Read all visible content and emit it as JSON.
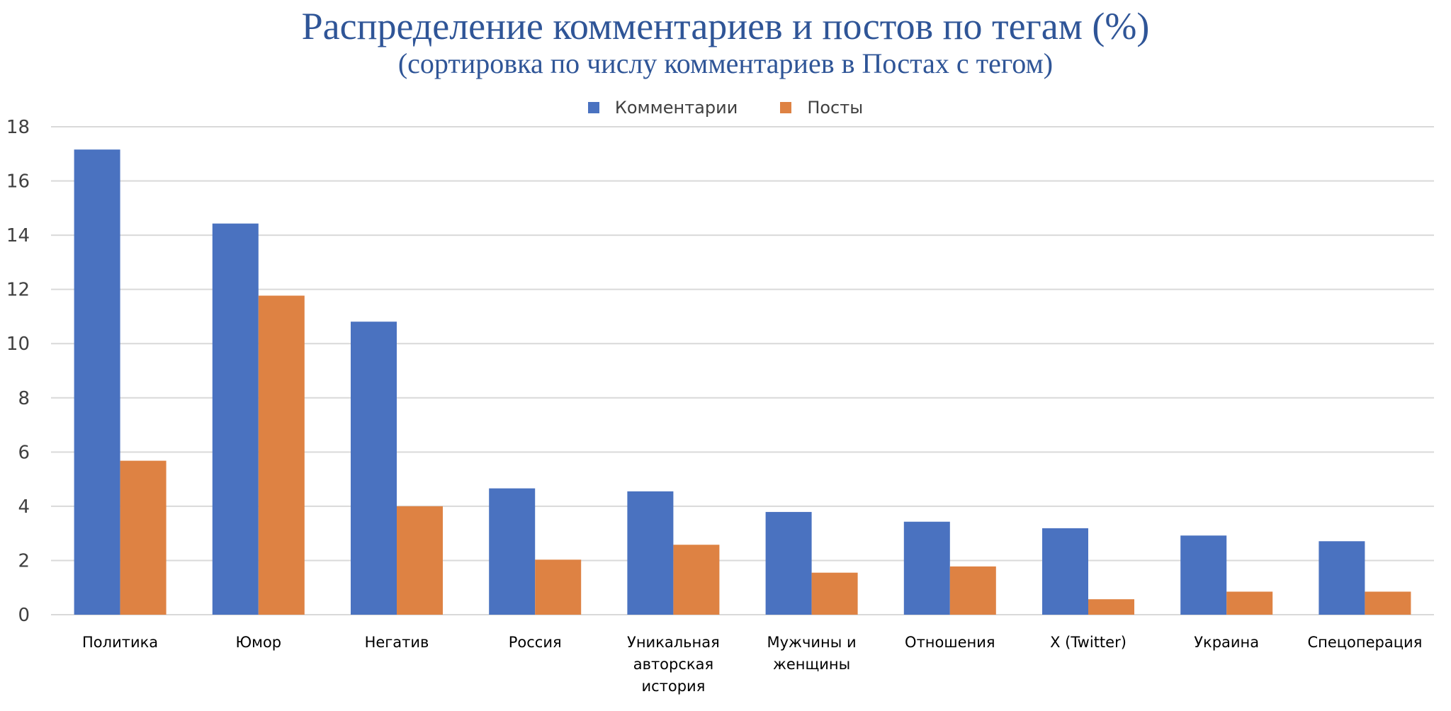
{
  "chart_data": {
    "type": "bar",
    "title": "Распределение комментариев и постов по тегам (%)",
    "subtitle": "(сортировка по числу комментариев в Постах с тегом)",
    "xlabel": "",
    "ylabel": "",
    "ylim": [
      0,
      18
    ],
    "yticks": [
      0,
      2,
      4,
      6,
      8,
      10,
      12,
      14,
      16,
      18
    ],
    "grid": true,
    "legend_position": "top",
    "categories": [
      "Политика",
      "Юмор",
      "Негатив",
      "Россия",
      "Уникальная авторская история",
      "Мужчины и женщины",
      "Отношения",
      "X (Twitter)",
      "Украина",
      "Спецоперация"
    ],
    "category_lines": [
      [
        "Политика"
      ],
      [
        "Юмор"
      ],
      [
        "Негатив"
      ],
      [
        "Россия"
      ],
      [
        "Уникальная",
        "авторская",
        "история"
      ],
      [
        "Мужчины и",
        "женщины"
      ],
      [
        "Отношения"
      ],
      [
        "X (Twitter)"
      ],
      [
        "Украина"
      ],
      [
        "Спецоперация"
      ]
    ],
    "series": [
      {
        "name": "Комментарии",
        "color": "#4A72C0",
        "values": [
          17.16,
          14.43,
          10.81,
          4.66,
          4.55,
          3.79,
          3.43,
          3.19,
          2.92,
          2.71
        ]
      },
      {
        "name": "Посты",
        "color": "#DE8243",
        "values": [
          5.68,
          11.77,
          4.0,
          2.03,
          2.58,
          1.55,
          1.78,
          0.57,
          0.85,
          0.85
        ]
      }
    ]
  }
}
